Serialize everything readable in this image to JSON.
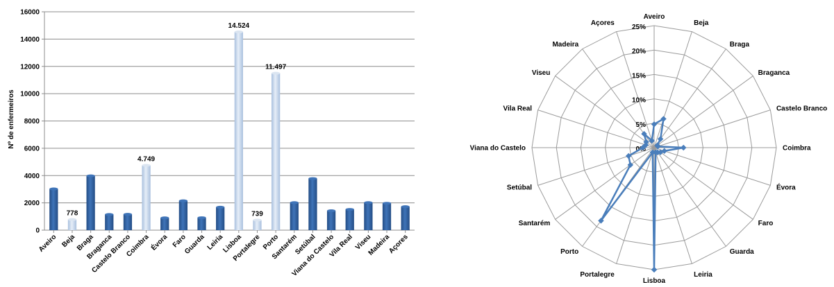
{
  "chart_data": [
    {
      "type": "bar",
      "title": "",
      "xlabel": "",
      "ylabel": "Nº de enfermeiros",
      "ylim": [
        0,
        16000
      ],
      "yticks": [
        0,
        2000,
        4000,
        6000,
        8000,
        10000,
        12000,
        14000,
        16000
      ],
      "categories": [
        "Aveiro",
        "Beja",
        "Braga",
        "Braganca",
        "Castelo Branco",
        "Coimbra",
        "Évora",
        "Faro",
        "Guarda",
        "Leiria",
        "Lisboa",
        "Portalegre",
        "Porto",
        "Santarém",
        "Setúbal",
        "Viana do Castelo",
        "Vila Real",
        "Viseu",
        "Madeira",
        "Açores"
      ],
      "values": [
        3020,
        778,
        3980,
        1150,
        1160,
        4749,
        900,
        2150,
        910,
        1680,
        14524,
        739,
        11497,
        2020,
        3780,
        1420,
        1520,
        2020,
        1970,
        1720
      ],
      "highlighted": [
        "Beja",
        "Coimbra",
        "Lisboa",
        "Portalegre",
        "Porto"
      ],
      "data_labels": [
        {
          "category": "Beja",
          "label": "778"
        },
        {
          "category": "Coimbra",
          "label": "4.749"
        },
        {
          "category": "Lisboa",
          "label": "14.524"
        },
        {
          "category": "Portalegre",
          "label": "739"
        },
        {
          "category": "Porto",
          "label": "11.497"
        }
      ],
      "grid": true,
      "colors": {
        "bar": "#2e5e9e",
        "bar_light": "#3f74b8",
        "highlight": "#b8cce4",
        "highlight_light": "#dbe5f1"
      }
    },
    {
      "type": "radar",
      "title": "",
      "categories": [
        "Aveiro",
        "Beja",
        "Braga",
        "Braganca",
        "Castelo Branco",
        "Coimbra",
        "Évora",
        "Faro",
        "Guarda",
        "Leiria",
        "Lisboa",
        "Portalegre",
        "Porto",
        "Santarém",
        "Setúbal",
        "Viana do Castelo",
        "Vila Real",
        "Viseu",
        "Madeira",
        "Açores"
      ],
      "values": [
        4.8,
        6.2,
        2.2,
        0.8,
        0.8,
        6.0,
        2.2,
        1.6,
        1.2,
        1.0,
        25.0,
        1.0,
        18.5,
        6.0,
        5.5,
        2.3,
        1.8,
        2.0,
        3.5,
        1.5
      ],
      "rlim": [
        0,
        25
      ],
      "rticks": [
        "0%",
        "5%",
        "10%",
        "15%",
        "20%",
        "25%"
      ],
      "grid": true,
      "colors": {
        "line": "#4a7ebb",
        "grid": "#9a9a9a"
      }
    }
  ]
}
